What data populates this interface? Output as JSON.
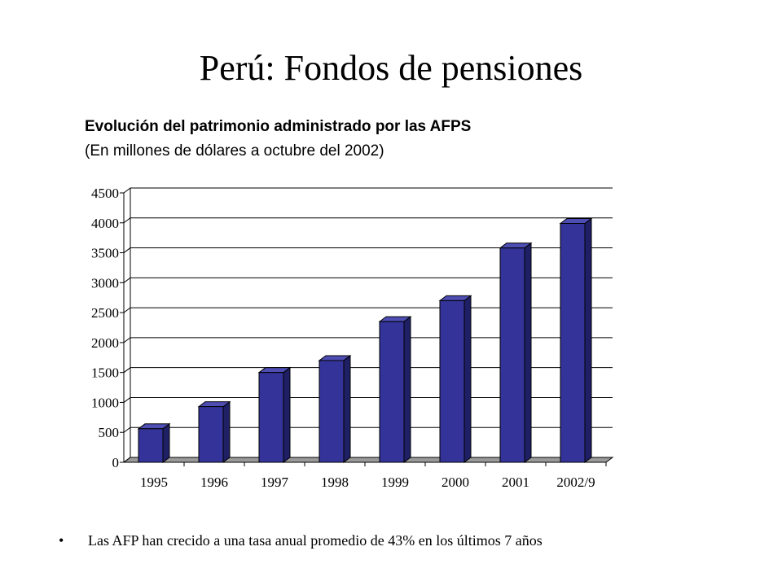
{
  "slide": {
    "title": "Perú: Fondos de pensiones",
    "bullet": "Las AFP han crecido a una tasa anual promedio de 43% en los últimos 7 años"
  },
  "chart_data": {
    "type": "bar",
    "title": "Evolución del patrimonio administrado por las AFPS",
    "subtitle": "(En millones de dólares a octubre del 2002)",
    "xlabel": "",
    "ylabel": "",
    "categories": [
      "1995",
      "1996",
      "1997",
      "1998",
      "1999",
      "2000",
      "2001",
      "2002/9"
    ],
    "values": [
      560,
      930,
      1500,
      1700,
      2350,
      2700,
      3580,
      3990
    ],
    "ylim": [
      0,
      4500
    ],
    "yticks": [
      0,
      500,
      1000,
      1500,
      2000,
      2500,
      3000,
      3500,
      4000,
      4500
    ],
    "grid": true,
    "legend": "none",
    "style": "3d-column",
    "colors": {
      "bar_front": "#333399",
      "bar_side": "#1f1f66",
      "bar_top": "#4d4db3",
      "floor": "#9a9a9a"
    }
  }
}
